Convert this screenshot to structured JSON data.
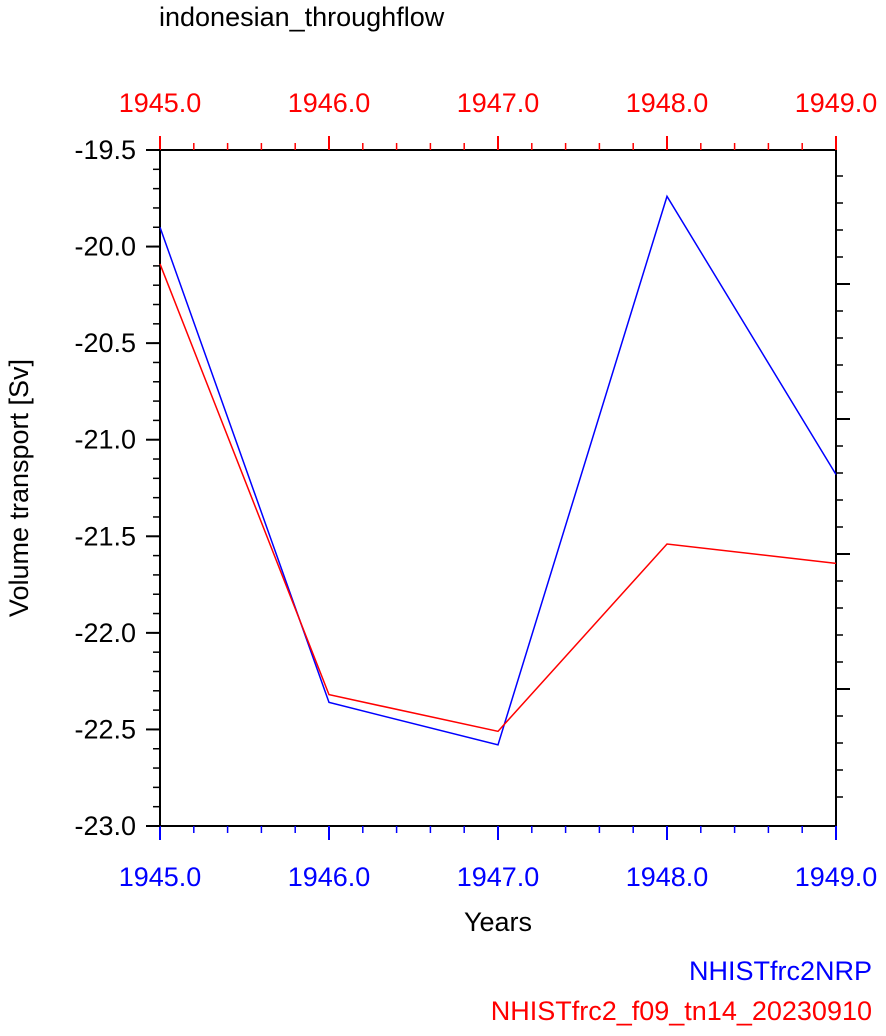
{
  "chart_data": {
    "type": "line",
    "title": "indonesian_throughflow",
    "xlabel": "Years",
    "ylabel": "Volume transport [Sv]",
    "x": [
      1945.0,
      1946.0,
      1947.0,
      1948.0,
      1949.0
    ],
    "xlim": [
      1945.0,
      1949.0
    ],
    "ylim": [
      -23.0,
      -19.5
    ],
    "x_tick_labels": [
      "1945.0",
      "1946.0",
      "1947.0",
      "1948.0",
      "1949.0"
    ],
    "y_ticks": [
      -19.5,
      -20.0,
      -20.5,
      -21.0,
      -21.5,
      -22.0,
      -22.5,
      -23.0
    ],
    "y_tick_labels": [
      "-19.5",
      "-20.0",
      "-20.5",
      "-21.0",
      "-21.5",
      "-22.0",
      "-22.5",
      "-23.0"
    ],
    "series": [
      {
        "name": "NHISTfrc2NRP",
        "color": "#0000ff",
        "values": [
          -19.9,
          -22.36,
          -22.58,
          -19.74,
          -21.18
        ]
      },
      {
        "name": "NHISTfrc2_f09_tn14_20230910",
        "color": "#ff0000",
        "values": [
          -20.09,
          -22.32,
          -22.51,
          -21.54,
          -21.64
        ]
      }
    ],
    "grid": false,
    "legend": "bottom-right"
  }
}
